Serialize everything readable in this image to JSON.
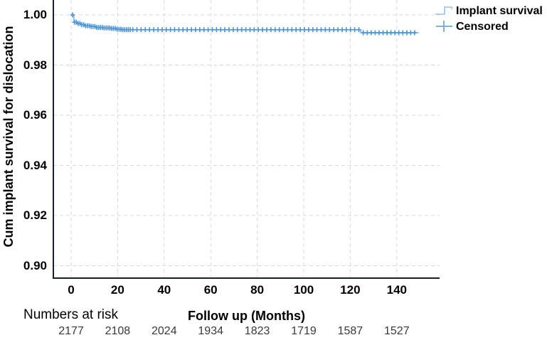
{
  "labels": {
    "y_title": "Cum implant survival for dislocation",
    "x_title": "Follow up (Months)",
    "numbers_at_risk_label": "Numbers at risk"
  },
  "legend": {
    "position": "top-right",
    "items": [
      {
        "label": "Implant survival",
        "symbol": "step-line-icon",
        "color": "#a3c9ec"
      },
      {
        "label": "Censored",
        "symbol": "plus-icon",
        "color": "#6aa7de"
      }
    ]
  },
  "colors": {
    "curve": "#7db4e8",
    "censor_marks": "#4f96d8",
    "axis": "#17212b",
    "gridlines": "#d9d9d9",
    "text": "#000000",
    "risk_numbers": "#3a3a3a",
    "background": "#ffffff"
  },
  "chart_data": {
    "type": "line",
    "subtype": "kaplan-meier-step",
    "title": "",
    "xlabel": "Follow up (Months)",
    "ylabel": "Cum implant survival for dislocation",
    "xlim": [
      -7.6,
      158.4
    ],
    "ylim": [
      0.8945,
      1.0055
    ],
    "grid": "dashed",
    "legend_position": "top-right",
    "xticks": [
      0,
      20,
      40,
      60,
      80,
      100,
      120,
      140
    ],
    "yticks": [
      1.0,
      0.98,
      0.96,
      0.94,
      0.92,
      0.9
    ],
    "ytick_labels": [
      "1.00",
      "0.98",
      "0.96",
      "0.94",
      "0.92",
      "0.90"
    ],
    "series": [
      {
        "name": "Implant survival",
        "type": "step",
        "steps": [
          [
            0,
            1.0
          ],
          [
            1.2,
            0.9971
          ],
          [
            2.5,
            0.9966
          ],
          [
            4,
            0.9961
          ],
          [
            6,
            0.9957
          ],
          [
            8,
            0.9954
          ],
          [
            10.5,
            0.995
          ],
          [
            14,
            0.9948
          ],
          [
            17,
            0.9946
          ],
          [
            19.5,
            0.9943
          ],
          [
            22,
            0.9941
          ],
          [
            124.5,
            0.9929
          ]
        ],
        "end_t": 149.5
      },
      {
        "name": "Censored",
        "type": "marker-plus",
        "t": [
          0.6,
          1.4,
          2.2,
          3.0,
          3.8,
          4.6,
          5.4,
          6.2,
          7.0,
          7.8,
          8.6,
          9.4,
          10.2,
          11.0,
          11.8,
          12.6,
          13.4,
          14.2,
          15.0,
          15.8,
          16.6,
          17.4,
          18.2,
          19.0,
          19.8,
          20.6,
          21.4,
          22.2,
          23.0,
          23.8,
          24.6,
          25.4,
          26.5,
          28.3,
          30.1,
          31.9,
          33.7,
          35.5,
          37.3,
          39.1,
          40.9,
          42.7,
          44.5,
          46.3,
          48.1,
          49.9,
          51.7,
          53.5,
          55.3,
          57.1,
          58.9,
          60.7,
          62.5,
          64.3,
          66.1,
          67.9,
          69.7,
          71.5,
          73.3,
          75.1,
          76.9,
          78.7,
          80.5,
          82.3,
          84.1,
          85.9,
          87.7,
          89.5,
          91.3,
          93.1,
          94.9,
          96.7,
          98.5,
          100.3,
          102.1,
          103.9,
          105.7,
          107.5,
          109.3,
          111.1,
          112.9,
          114.7,
          116.5,
          118.3,
          120.1,
          121.9,
          123.7,
          125.6,
          127.3,
          129.0,
          130.7,
          132.4,
          134.1,
          135.8,
          137.5,
          139.2,
          140.9,
          142.6,
          144.3,
          146.0,
          147.7
        ]
      }
    ],
    "numbers_at_risk": {
      "label": "Numbers at risk",
      "t": [
        0,
        20,
        40,
        60,
        80,
        100,
        120,
        140
      ],
      "values": [
        2177,
        2108,
        2024,
        1934,
        1823,
        1719,
        1587,
        1527
      ]
    }
  }
}
